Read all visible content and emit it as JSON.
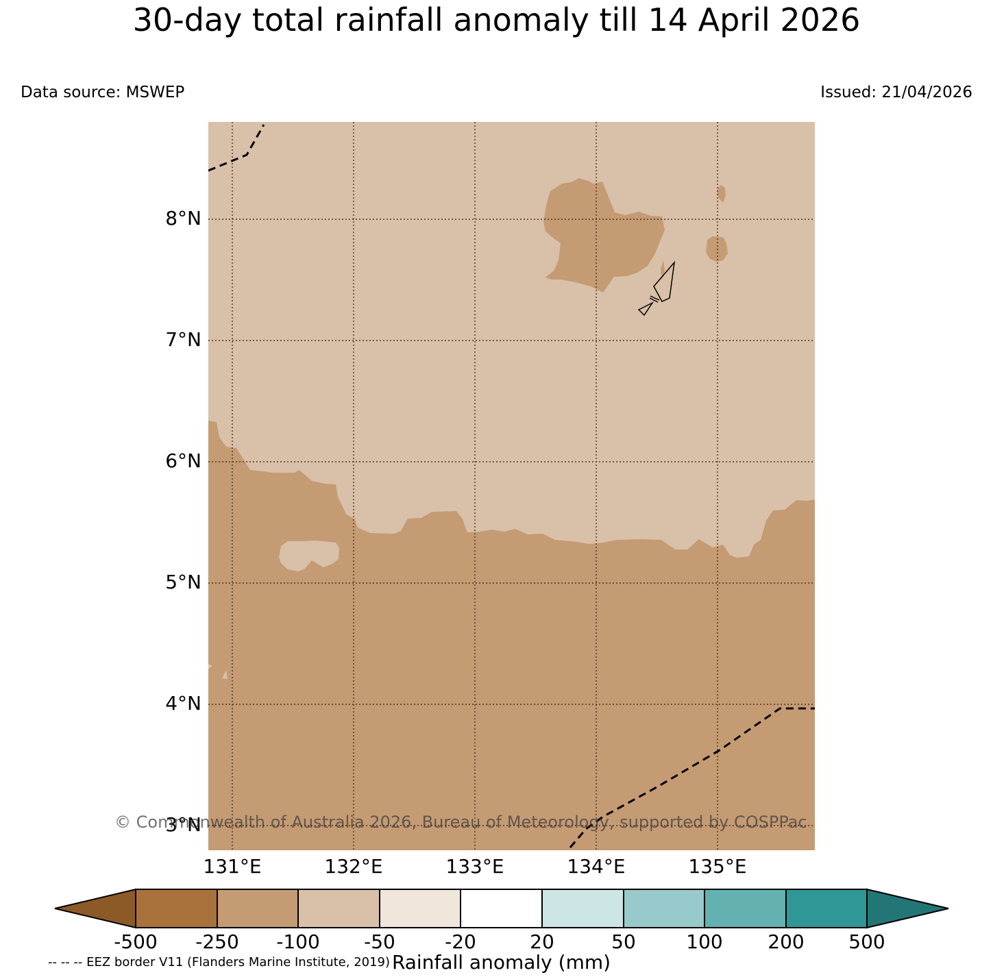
{
  "title": "30-day total rainfall anomaly till 14 April 2026",
  "data_source": "Data source: MSWEP",
  "issued": "Issued: 21/04/2026",
  "latitude_labels": [
    "8°N",
    "7°N",
    "6°N",
    "5°N",
    "4°N",
    "3°N"
  ],
  "longitude_labels": [
    "131°E",
    "132°E",
    "133°E",
    "134°E",
    "135°E"
  ],
  "colorbar": {
    "ticks": [
      "-500",
      "-250",
      "-100",
      "-50",
      "-20",
      "20",
      "50",
      "100",
      "200",
      "500"
    ],
    "colors": [
      "#8c5a26",
      "#a9723c",
      "#c49b73",
      "#d9c0a9",
      "#f1e6dc",
      "#ffffff",
      "#cce5e5",
      "#99cacb",
      "#64b1b2",
      "#2f9896",
      "#237676"
    ],
    "label": "Rainfall anomaly (mm)"
  },
  "copyright": "© Commonwealth of Australia 2026, Bureau of Meteorology, supported by COSPPac",
  "legend_note": "-- -- -- EEZ border V11 (Flanders Marine Institute, 2019)",
  "colors": {
    "class_-100_to_-50": "#d9c0a9",
    "class_-250_to_-100": "#c49b73",
    "gridline": "#4a3020",
    "eez_line": "#000000"
  }
}
